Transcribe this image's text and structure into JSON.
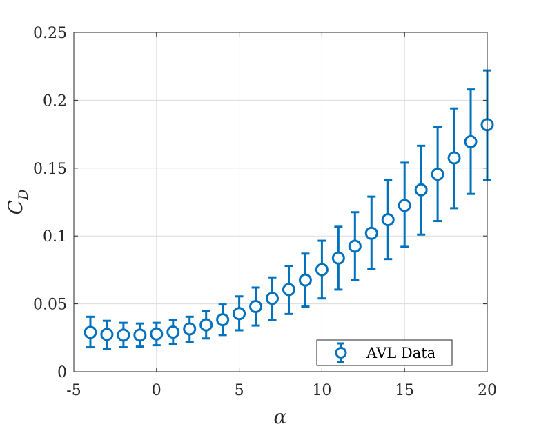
{
  "chart_data": {
    "type": "scatter",
    "title": "",
    "xlabel": "α",
    "ylabel": "C",
    "ylabel_subscript": "D",
    "xlim": [
      -5,
      20
    ],
    "ylim": [
      0,
      0.25
    ],
    "xticks": [
      -5,
      0,
      5,
      10,
      15,
      20
    ],
    "xtick_labels": [
      "-5",
      "0",
      "5",
      "10",
      "15",
      "20"
    ],
    "yticks": [
      0,
      0.05,
      0.1,
      0.15,
      0.2,
      0.25
    ],
    "ytick_labels": [
      "0",
      "0.05",
      "0.1",
      "0.15",
      "0.2",
      "0.25"
    ],
    "grid": true,
    "legend_position": "bottom-right",
    "series": [
      {
        "name": "AVL Data",
        "color": "#0072BD",
        "marker": "circle",
        "error_bars": true,
        "x": [
          -4,
          -3,
          -2,
          -1,
          0,
          1,
          2,
          3,
          4,
          5,
          6,
          7,
          8,
          9,
          10,
          11,
          12,
          13,
          14,
          15,
          16,
          17,
          18,
          19,
          20
        ],
        "y": [
          0.029,
          0.0275,
          0.027,
          0.027,
          0.0278,
          0.0292,
          0.0315,
          0.0345,
          0.0383,
          0.0428,
          0.048,
          0.054,
          0.0605,
          0.0675,
          0.0752,
          0.0837,
          0.0925,
          0.102,
          0.112,
          0.1225,
          0.134,
          0.1455,
          0.1575,
          0.1695,
          0.182
        ],
        "y_lower": [
          0.018,
          0.017,
          0.018,
          0.0185,
          0.0195,
          0.0205,
          0.022,
          0.0245,
          0.027,
          0.0305,
          0.034,
          0.038,
          0.0425,
          0.048,
          0.054,
          0.0605,
          0.0675,
          0.0755,
          0.083,
          0.092,
          0.101,
          0.111,
          0.1205,
          0.131,
          0.1415
        ],
        "y_upper": [
          0.0405,
          0.0375,
          0.036,
          0.0355,
          0.036,
          0.038,
          0.0405,
          0.0445,
          0.0495,
          0.0555,
          0.062,
          0.0695,
          0.078,
          0.087,
          0.0965,
          0.1068,
          0.1175,
          0.129,
          0.141,
          0.154,
          0.1665,
          0.1805,
          0.194,
          0.208,
          0.222
        ]
      }
    ]
  }
}
